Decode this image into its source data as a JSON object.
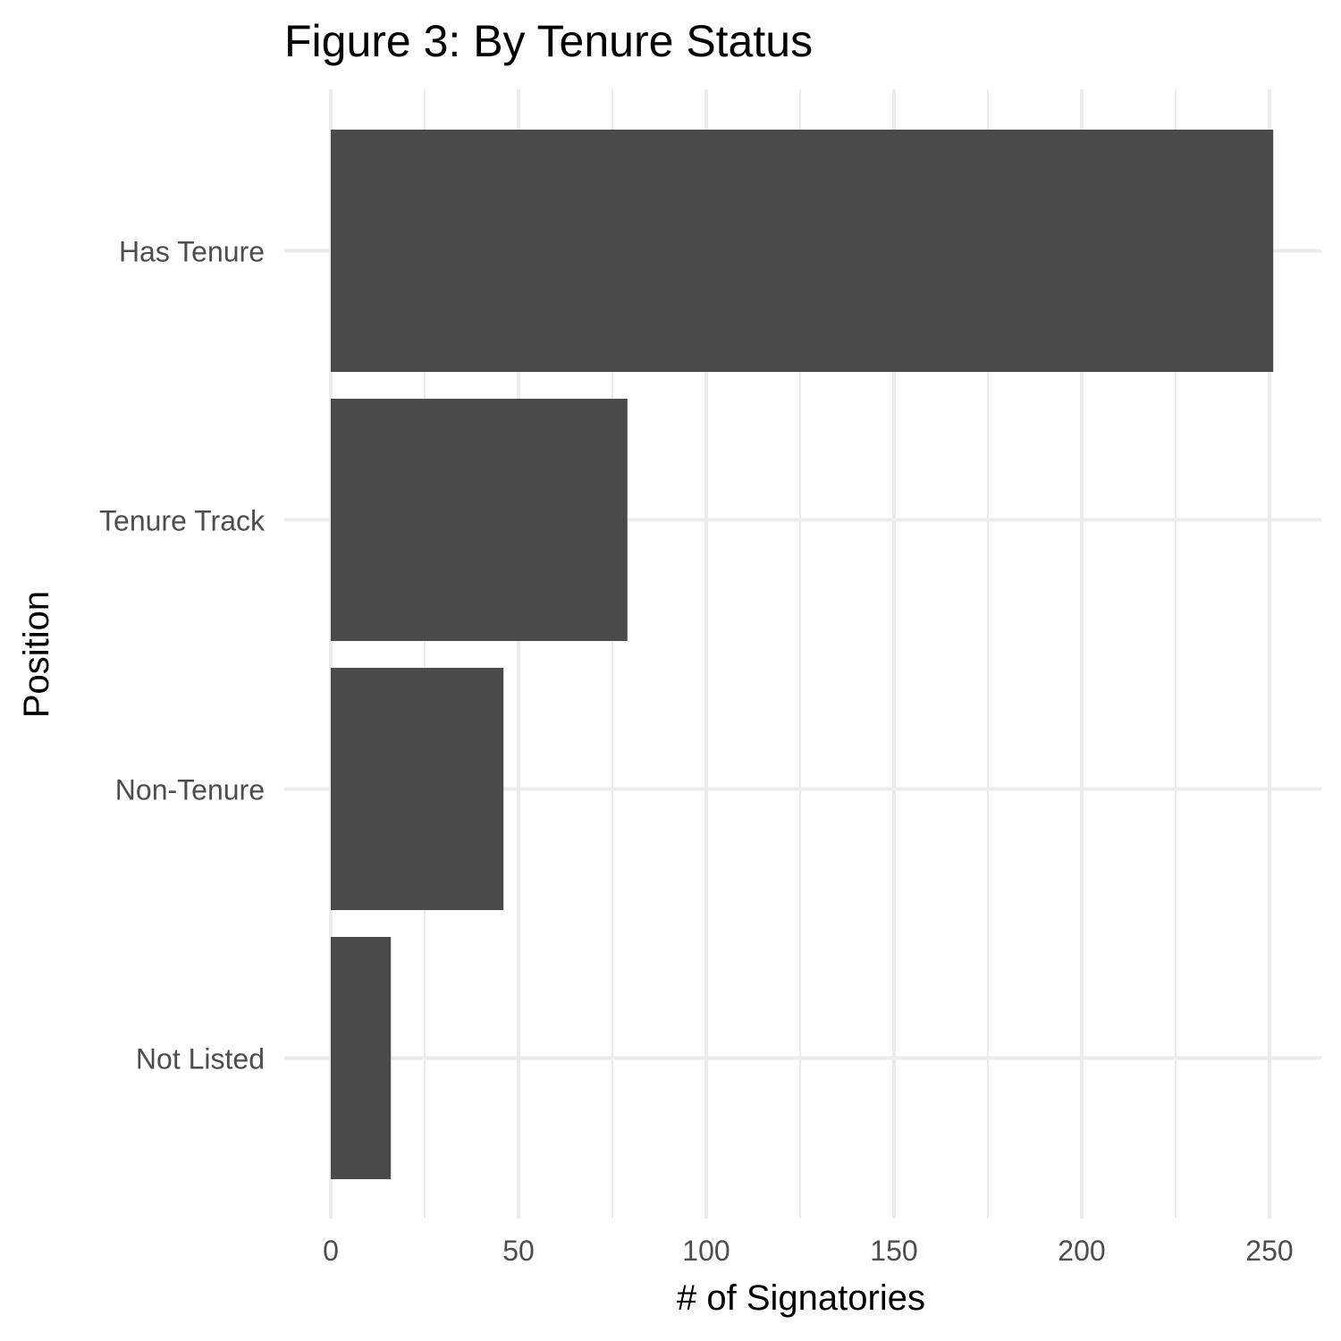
{
  "chart_data": {
    "type": "bar",
    "orientation": "horizontal",
    "title": "Figure 3: By Tenure Status",
    "xlabel": "# of Signatories",
    "ylabel": "Position",
    "categories": [
      "Has Tenure",
      "Tenure Track",
      "Non-Tenure",
      "Not Listed"
    ],
    "values": [
      251,
      79,
      46,
      16
    ],
    "xlim": [
      0,
      251
    ],
    "xticks": [
      0,
      50,
      100,
      150,
      200,
      250
    ],
    "grid": true,
    "legend": "none",
    "bar_color": "#4a4a4a",
    "grid_color": "#ebebeb"
  }
}
